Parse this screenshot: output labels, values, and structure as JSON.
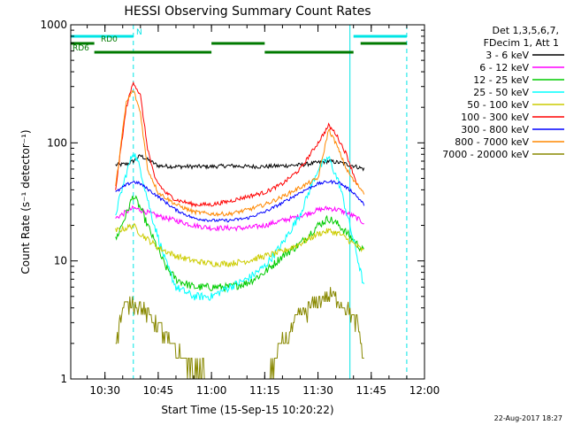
{
  "chart_data": {
    "type": "line",
    "title": "HESSI Observing Summary Count Rates",
    "xlabel": "Start Time (15-Sep-15 10:20:22)",
    "ylabel": "Count Rate (s⁻¹ detector⁻¹)",
    "y_scale": "log",
    "ylim": [
      1,
      1000
    ],
    "xlim": [
      "10:20:22",
      "12:00"
    ],
    "x_tick_labels": [
      "10:30",
      "10:45",
      "11:00",
      "11:15",
      "11:30",
      "11:45",
      "12:00"
    ],
    "y_tick_labels": [
      "1",
      "10",
      "100",
      "1000"
    ],
    "legend_header": [
      "Det 1,3,5,6,7,",
      "FDecim 1, Att 1"
    ],
    "legend_position": "right",
    "footer": "22-Aug-2017 18:27",
    "flags": [
      {
        "name": "N",
        "color": "#00e5e5",
        "intervals": [
          [
            "10:20:22",
            "10:38"
          ],
          [
            "11:40",
            "11:55"
          ]
        ]
      },
      {
        "name": "RD0",
        "color": "#007a00",
        "intervals": [
          [
            "10:20:22",
            "10:27"
          ],
          [
            "11:00",
            "11:15"
          ],
          [
            "11:42",
            "11:55"
          ]
        ]
      },
      {
        "name": "RD6",
        "color": "#007a00",
        "intervals": [
          [
            "10:27",
            "11:00"
          ],
          [
            "11:15",
            "11:40"
          ]
        ]
      }
    ],
    "night_markers": {
      "solid": [
        "10:20:22",
        "11:39"
      ],
      "dashed": [
        "10:38",
        "11:55"
      ]
    },
    "series": [
      {
        "name": "3 - 6 keV",
        "color": "#000000",
        "points": [
          [
            "10:33",
            65
          ],
          [
            "10:36",
            66
          ],
          [
            "10:38",
            70
          ],
          [
            "10:40",
            78
          ],
          [
            "10:42",
            72
          ],
          [
            "10:45",
            64
          ],
          [
            "10:50",
            63
          ],
          [
            "10:55",
            63
          ],
          [
            "11:00",
            63
          ],
          [
            "11:05",
            64
          ],
          [
            "11:10",
            63
          ],
          [
            "11:15",
            63
          ],
          [
            "11:20",
            64
          ],
          [
            "11:25",
            65
          ],
          [
            "11:30",
            68
          ],
          [
            "11:33",
            70
          ],
          [
            "11:36",
            68
          ],
          [
            "11:40",
            64
          ],
          [
            "11:43",
            60
          ]
        ]
      },
      {
        "name": "6 - 12 keV",
        "color": "#ff00ff",
        "points": [
          [
            "10:33",
            23
          ],
          [
            "10:36",
            26
          ],
          [
            "10:38",
            28
          ],
          [
            "10:40",
            27
          ],
          [
            "10:45",
            24
          ],
          [
            "10:50",
            22
          ],
          [
            "10:55",
            20
          ],
          [
            "11:00",
            19
          ],
          [
            "11:05",
            19
          ],
          [
            "11:10",
            19
          ],
          [
            "11:15",
            20
          ],
          [
            "11:20",
            22
          ],
          [
            "11:25",
            24
          ],
          [
            "11:30",
            27
          ],
          [
            "11:33",
            28
          ],
          [
            "11:36",
            27
          ],
          [
            "11:40",
            24
          ],
          [
            "11:43",
            21
          ]
        ]
      },
      {
        "name": "12 - 25 keV",
        "color": "#00cc00",
        "points": [
          [
            "10:33",
            15
          ],
          [
            "10:36",
            25
          ],
          [
            "10:38",
            36
          ],
          [
            "10:40",
            28
          ],
          [
            "10:43",
            17
          ],
          [
            "10:47",
            9
          ],
          [
            "10:50",
            7
          ],
          [
            "10:55",
            6
          ],
          [
            "11:00",
            6
          ],
          [
            "11:05",
            6
          ],
          [
            "11:10",
            6.5
          ],
          [
            "11:15",
            8
          ],
          [
            "11:20",
            11
          ],
          [
            "11:25",
            14
          ],
          [
            "11:30",
            20
          ],
          [
            "11:33",
            23
          ],
          [
            "11:36",
            20
          ],
          [
            "11:40",
            15
          ],
          [
            "11:43",
            12
          ]
        ]
      },
      {
        "name": "25 - 50 keV",
        "color": "#00ffff",
        "points": [
          [
            "10:33",
            25
          ],
          [
            "10:36",
            55
          ],
          [
            "10:38",
            85
          ],
          [
            "10:40",
            60
          ],
          [
            "10:43",
            25
          ],
          [
            "10:47",
            10
          ],
          [
            "10:50",
            6
          ],
          [
            "10:55",
            5
          ],
          [
            "11:00",
            5
          ],
          [
            "11:05",
            6
          ],
          [
            "11:10",
            7
          ],
          [
            "11:15",
            9
          ],
          [
            "11:20",
            14
          ],
          [
            "11:25",
            25
          ],
          [
            "11:30",
            60
          ],
          [
            "11:33",
            75
          ],
          [
            "11:36",
            45
          ],
          [
            "11:40",
            15
          ],
          [
            "11:43",
            6
          ]
        ]
      },
      {
        "name": "50 - 100 keV",
        "color": "#cccc00",
        "points": [
          [
            "10:33",
            18
          ],
          [
            "10:36",
            19
          ],
          [
            "10:38",
            20
          ],
          [
            "10:40",
            17
          ],
          [
            "10:45",
            13
          ],
          [
            "10:50",
            11
          ],
          [
            "10:55",
            10
          ],
          [
            "11:00",
            9.5
          ],
          [
            "11:05",
            9.5
          ],
          [
            "11:10",
            10
          ],
          [
            "11:15",
            11
          ],
          [
            "11:20",
            12
          ],
          [
            "11:25",
            14
          ],
          [
            "11:30",
            17
          ],
          [
            "11:33",
            18
          ],
          [
            "11:36",
            17
          ],
          [
            "11:40",
            14
          ],
          [
            "11:43",
            12
          ]
        ]
      },
      {
        "name": "100 - 300 keV",
        "color": "#ff0000",
        "points": [
          [
            "10:33",
            40
          ],
          [
            "10:36",
            200
          ],
          [
            "10:38",
            330
          ],
          [
            "10:40",
            250
          ],
          [
            "10:42",
            90
          ],
          [
            "10:44",
            50
          ],
          [
            "10:47",
            38
          ],
          [
            "10:50",
            33
          ],
          [
            "10:55",
            30
          ],
          [
            "11:00",
            30
          ],
          [
            "11:05",
            32
          ],
          [
            "11:10",
            35
          ],
          [
            "11:15",
            38
          ],
          [
            "11:20",
            45
          ],
          [
            "11:25",
            60
          ],
          [
            "11:30",
            100
          ],
          [
            "11:33",
            140
          ],
          [
            "11:35",
            120
          ],
          [
            "11:38",
            80
          ],
          [
            "11:41",
            45
          ]
        ]
      },
      {
        "name": "300 - 800 keV",
        "color": "#0000ff",
        "points": [
          [
            "10:33",
            38
          ],
          [
            "10:36",
            44
          ],
          [
            "10:38",
            47
          ],
          [
            "10:40",
            45
          ],
          [
            "10:45",
            35
          ],
          [
            "10:50",
            27
          ],
          [
            "10:55",
            23
          ],
          [
            "11:00",
            22
          ],
          [
            "11:05",
            22
          ],
          [
            "11:10",
            23
          ],
          [
            "11:15",
            26
          ],
          [
            "11:20",
            31
          ],
          [
            "11:25",
            38
          ],
          [
            "11:30",
            45
          ],
          [
            "11:33",
            47
          ],
          [
            "11:36",
            46
          ],
          [
            "11:40",
            38
          ],
          [
            "11:43",
            30
          ]
        ]
      },
      {
        "name": "800 - 7000 keV",
        "color": "#ff8800",
        "points": [
          [
            "10:33",
            42
          ],
          [
            "10:36",
            220
          ],
          [
            "10:38",
            280
          ],
          [
            "10:40",
            180
          ],
          [
            "10:42",
            60
          ],
          [
            "10:45",
            38
          ],
          [
            "10:50",
            30
          ],
          [
            "10:55",
            26
          ],
          [
            "11:00",
            25
          ],
          [
            "11:05",
            25
          ],
          [
            "11:10",
            27
          ],
          [
            "11:15",
            30
          ],
          [
            "11:20",
            35
          ],
          [
            "11:25",
            42
          ],
          [
            "11:30",
            50
          ],
          [
            "11:33",
            130
          ],
          [
            "11:35",
            100
          ],
          [
            "11:38",
            60
          ],
          [
            "11:40",
            48
          ],
          [
            "11:43",
            38
          ]
        ]
      },
      {
        "name": "7000 - 20000 keV",
        "color": "#888800",
        "points": [
          [
            "10:33",
            2
          ],
          [
            "10:35",
            4
          ],
          [
            "10:38",
            4.5
          ],
          [
            "10:42",
            3.5
          ],
          [
            "10:45",
            3
          ],
          [
            "10:48",
            2
          ],
          [
            "10:52",
            1.5
          ],
          [
            "10:55",
            1.2
          ],
          [
            "11:00",
            1
          ],
          [
            "11:10",
            1
          ],
          [
            "11:15",
            1
          ],
          [
            "11:18",
            1.5
          ],
          [
            "11:20",
            2
          ],
          [
            "11:25",
            3.5
          ],
          [
            "11:28",
            4
          ],
          [
            "11:32",
            5
          ],
          [
            "11:35",
            5
          ],
          [
            "11:38",
            4
          ],
          [
            "11:41",
            3
          ],
          [
            "11:43",
            1.5
          ]
        ]
      }
    ]
  }
}
